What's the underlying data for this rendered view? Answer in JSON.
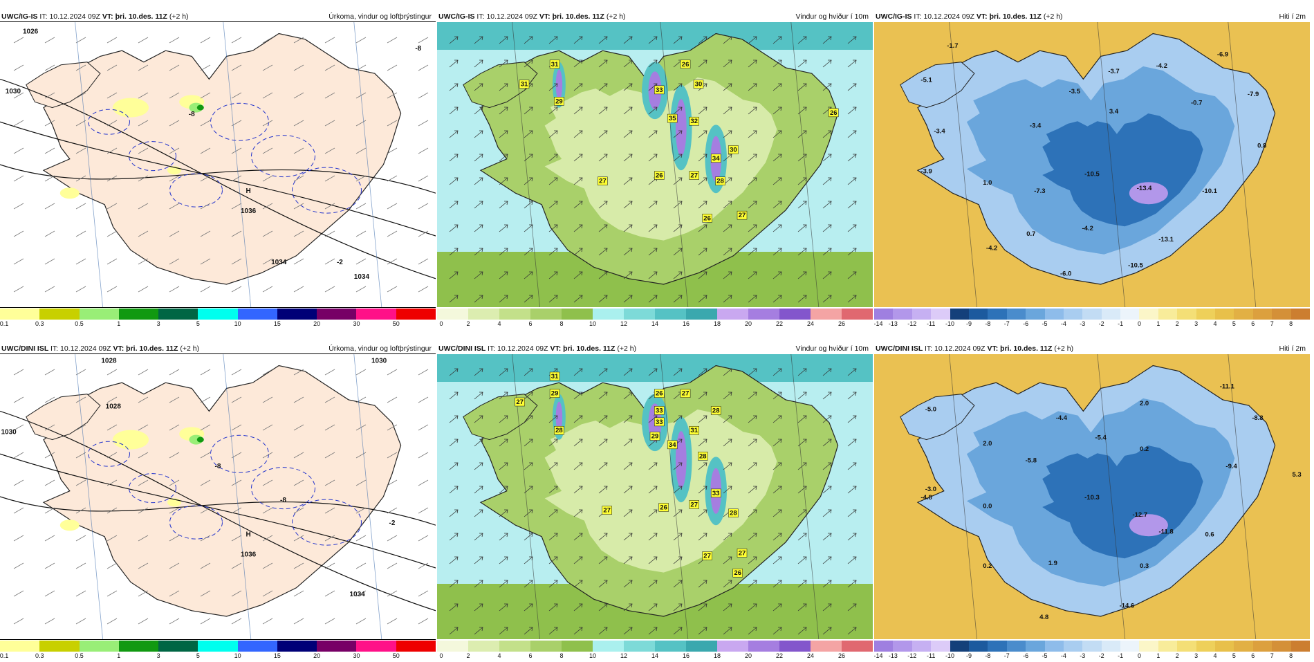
{
  "panels": [
    {
      "model": "UWC/IG-IS",
      "it_label": "IT:",
      "it_value": "10.12.2024 09Z",
      "vt_label": "VT:",
      "vt_value": "þri. 10.des. 11Z",
      "lead": "(+2 h)",
      "title": "Úrkoma, vindur og loftþrýstingur",
      "kind": "precip",
      "ticks": [
        "0.1",
        "0.3",
        "0.5",
        "1",
        "3",
        "5",
        "10",
        "15",
        "20",
        "30",
        "50"
      ],
      "colors": [
        "#ffff99",
        "#c8d000",
        "#99ee77",
        "#119911",
        "#006644",
        "#00ffee",
        "#3366ff",
        "#000077",
        "#770066",
        "#ff1188",
        "#ee0000"
      ],
      "labels": [
        {
          "t": "1026",
          "x": 7,
          "y": 4
        },
        {
          "t": "1030",
          "x": 3,
          "y": 25
        },
        {
          "t": "1034",
          "x": 64,
          "y": 85
        },
        {
          "t": "H",
          "x": 57,
          "y": 60
        },
        {
          "t": "1036",
          "x": 57,
          "y": 67
        },
        {
          "t": "-8",
          "x": 44,
          "y": 33
        },
        {
          "t": "-2",
          "x": 78,
          "y": 85
        },
        {
          "t": "-8",
          "x": 96,
          "y": 10
        },
        {
          "t": "1034",
          "x": 83,
          "y": 90
        }
      ]
    },
    {
      "model": "UWC/IG-IS",
      "it_label": "IT:",
      "it_value": "10.12.2024 09Z",
      "vt_label": "VT:",
      "vt_value": "þri. 10.des. 11Z",
      "lead": "(+2 h)",
      "title": "Vindur og hviður í 10m",
      "kind": "wind",
      "ticks": [
        "0",
        "2",
        "4",
        "6",
        "8",
        "10",
        "12",
        "14",
        "16",
        "18",
        "20",
        "22",
        "24",
        "26"
      ],
      "colors": [
        "#f4f8dc",
        "#dcedb0",
        "#c3e08a",
        "#a9d06a",
        "#8fc04c",
        "#aaf0ee",
        "#7ddad8",
        "#55c2c4",
        "#3aa8ae",
        "#c9a8f0",
        "#a57ee0",
        "#8356cc",
        "#f4a4a4",
        "#e06870"
      ],
      "labels": [
        {
          "t": "31",
          "x": 20,
          "y": 22
        },
        {
          "t": "29",
          "x": 28,
          "y": 28
        },
        {
          "t": "31",
          "x": 27,
          "y": 15
        },
        {
          "t": "26",
          "x": 57,
          "y": 15
        },
        {
          "t": "33",
          "x": 51,
          "y": 24
        },
        {
          "t": "30",
          "x": 60,
          "y": 22
        },
        {
          "t": "35",
          "x": 54,
          "y": 34
        },
        {
          "t": "32",
          "x": 59,
          "y": 35
        },
        {
          "t": "34",
          "x": 64,
          "y": 48
        },
        {
          "t": "30",
          "x": 68,
          "y": 45
        },
        {
          "t": "27",
          "x": 38,
          "y": 56
        },
        {
          "t": "26",
          "x": 51,
          "y": 54
        },
        {
          "t": "27",
          "x": 59,
          "y": 54
        },
        {
          "t": "28",
          "x": 65,
          "y": 56
        },
        {
          "t": "26",
          "x": 62,
          "y": 69
        },
        {
          "t": "27",
          "x": 70,
          "y": 68
        },
        {
          "t": "26",
          "x": 91,
          "y": 32
        }
      ]
    },
    {
      "model": "UWC/IG-IS",
      "it_label": "IT:",
      "it_value": "10.12.2024 09Z",
      "vt_label": "VT:",
      "vt_value": "þri. 10.des. 11Z",
      "lead": "(+2 h)",
      "title": "Hiti í 2m",
      "kind": "temp",
      "ticks": [
        "-14",
        "-13",
        "-12",
        "-11",
        "-10",
        "-9",
        "-8",
        "-7",
        "-6",
        "-5",
        "-4",
        "-3",
        "-2",
        "-1",
        "0",
        "1",
        "2",
        "3",
        "4",
        "5",
        "6",
        "7",
        "8"
      ],
      "colors": [
        "#9f7fe0",
        "#b297ea",
        "#c6b0f2",
        "#dccbf8",
        "#14407a",
        "#1c5a9e",
        "#2d72b8",
        "#4a8ccc",
        "#6aa6dc",
        "#8ebcea",
        "#a9cdf0",
        "#c2dcf4",
        "#d9eaf8",
        "#ecf4fb",
        "#fbf6c8",
        "#f8ec9a",
        "#f4df76",
        "#eed05a",
        "#e8c04a",
        "#e2b044",
        "#dca03e",
        "#d49038",
        "#cc7e30"
      ],
      "labels": [
        {
          "t": "-1.7",
          "x": 18,
          "y": 9
        },
        {
          "t": "-5.1",
          "x": 12,
          "y": 21
        },
        {
          "t": "-3.5",
          "x": 46,
          "y": 25
        },
        {
          "t": "-3.7",
          "x": 55,
          "y": 18
        },
        {
          "t": "-4.2",
          "x": 66,
          "y": 16
        },
        {
          "t": "-6.9",
          "x": 80,
          "y": 12
        },
        {
          "t": "-0.7",
          "x": 74,
          "y": 29
        },
        {
          "t": "-7.9",
          "x": 87,
          "y": 26
        },
        {
          "t": "3.4",
          "x": 55,
          "y": 32
        },
        {
          "t": "-3.4",
          "x": 15,
          "y": 39
        },
        {
          "t": "-3.4",
          "x": 37,
          "y": 37
        },
        {
          "t": "0.8",
          "x": 89,
          "y": 44
        },
        {
          "t": "-3.9",
          "x": 12,
          "y": 53
        },
        {
          "t": "1.0",
          "x": 26,
          "y": 57
        },
        {
          "t": "-7.3",
          "x": 38,
          "y": 60
        },
        {
          "t": "-10.5",
          "x": 50,
          "y": 54
        },
        {
          "t": "-13.4",
          "x": 62,
          "y": 59
        },
        {
          "t": "-10.1",
          "x": 77,
          "y": 60
        },
        {
          "t": "-4.2",
          "x": 49,
          "y": 73
        },
        {
          "t": "0.7",
          "x": 36,
          "y": 75
        },
        {
          "t": "-4.2",
          "x": 27,
          "y": 80
        },
        {
          "t": "-13.1",
          "x": 67,
          "y": 77
        },
        {
          "t": "-10.5",
          "x": 60,
          "y": 86
        },
        {
          "t": "-6.0",
          "x": 44,
          "y": 89
        }
      ]
    },
    {
      "model": "UWC/DINI ISL",
      "it_label": "IT:",
      "it_value": "10.12.2024 09Z",
      "vt_label": "VT:",
      "vt_value": "þri. 10.des. 11Z",
      "lead": "(+2 h)",
      "title": "Úrkoma, vindur og loftþrýstingur",
      "kind": "precip",
      "ticks": [
        "0.1",
        "0.3",
        "0.5",
        "1",
        "3",
        "5",
        "10",
        "15",
        "20",
        "30",
        "50"
      ],
      "colors": [
        "#ffff99",
        "#c8d000",
        "#99ee77",
        "#119911",
        "#006644",
        "#00ffee",
        "#3366ff",
        "#000077",
        "#770066",
        "#ff1188",
        "#ee0000"
      ],
      "labels": [
        {
          "t": "1028",
          "x": 25,
          "y": 3
        },
        {
          "t": "1030",
          "x": 87,
          "y": 3
        },
        {
          "t": "1030",
          "x": 2,
          "y": 28
        },
        {
          "t": "1028",
          "x": 26,
          "y": 19
        },
        {
          "t": "H",
          "x": 57,
          "y": 64
        },
        {
          "t": "1036",
          "x": 57,
          "y": 71
        },
        {
          "t": "-8",
          "x": 50,
          "y": 40
        },
        {
          "t": "-8",
          "x": 65,
          "y": 52
        },
        {
          "t": "-2",
          "x": 90,
          "y": 60
        },
        {
          "t": "1034",
          "x": 82,
          "y": 85
        }
      ]
    },
    {
      "model": "UWC/DINI ISL",
      "it_label": "IT:",
      "it_value": "10.12.2024 09Z",
      "vt_label": "VT:",
      "vt_value": "þri. 10.des. 11Z",
      "lead": "(+2 h)",
      "title": "Vindur og hviður í 10m",
      "kind": "wind",
      "ticks": [
        "0",
        "2",
        "4",
        "6",
        "8",
        "10",
        "12",
        "14",
        "16",
        "18",
        "20",
        "22",
        "24",
        "26"
      ],
      "colors": [
        "#f4f8dc",
        "#dcedb0",
        "#c3e08a",
        "#a9d06a",
        "#8fc04c",
        "#aaf0ee",
        "#7ddad8",
        "#55c2c4",
        "#3aa8ae",
        "#c9a8f0",
        "#a57ee0",
        "#8356cc",
        "#f4a4a4",
        "#e06870"
      ],
      "labels": [
        {
          "t": "27",
          "x": 19,
          "y": 17
        },
        {
          "t": "29",
          "x": 27,
          "y": 14
        },
        {
          "t": "31",
          "x": 27,
          "y": 8
        },
        {
          "t": "28",
          "x": 28,
          "y": 27
        },
        {
          "t": "26",
          "x": 51,
          "y": 14
        },
        {
          "t": "27",
          "x": 57,
          "y": 14
        },
        {
          "t": "33",
          "x": 51,
          "y": 20
        },
        {
          "t": "28",
          "x": 64,
          "y": 20
        },
        {
          "t": "33",
          "x": 51,
          "y": 24
        },
        {
          "t": "29",
          "x": 50,
          "y": 29
        },
        {
          "t": "31",
          "x": 59,
          "y": 27
        },
        {
          "t": "34",
          "x": 54,
          "y": 32
        },
        {
          "t": "28",
          "x": 61,
          "y": 36
        },
        {
          "t": "33",
          "x": 64,
          "y": 49
        },
        {
          "t": "27",
          "x": 59,
          "y": 53
        },
        {
          "t": "28",
          "x": 68,
          "y": 56
        },
        {
          "t": "27",
          "x": 39,
          "y": 55
        },
        {
          "t": "26",
          "x": 52,
          "y": 54
        },
        {
          "t": "27",
          "x": 62,
          "y": 71
        },
        {
          "t": "27",
          "x": 70,
          "y": 70
        },
        {
          "t": "26",
          "x": 69,
          "y": 77
        }
      ]
    },
    {
      "model": "UWC/DINI ISL",
      "it_label": "IT:",
      "it_value": "10.12.2024 09Z",
      "vt_label": "VT:",
      "vt_value": "þri. 10.des. 11Z",
      "lead": "(+2 h)",
      "title": "Hiti í 2m",
      "kind": "temp",
      "ticks": [
        "-14",
        "-13",
        "-12",
        "-11",
        "-10",
        "-9",
        "-8",
        "-7",
        "-6",
        "-5",
        "-4",
        "-3",
        "-2",
        "-1",
        "0",
        "1",
        "2",
        "3",
        "4",
        "5",
        "6",
        "7",
        "8"
      ],
      "colors": [
        "#9f7fe0",
        "#b297ea",
        "#c6b0f2",
        "#dccbf8",
        "#14407a",
        "#1c5a9e",
        "#2d72b8",
        "#4a8ccc",
        "#6aa6dc",
        "#8ebcea",
        "#a9cdf0",
        "#c2dcf4",
        "#d9eaf8",
        "#ecf4fb",
        "#fbf6c8",
        "#f8ec9a",
        "#f4df76",
        "#eed05a",
        "#e8c04a",
        "#e2b044",
        "#dca03e",
        "#d49038",
        "#cc7e30"
      ],
      "labels": [
        {
          "t": "-5.0",
          "x": 13,
          "y": 20
        },
        {
          "t": "-11.1",
          "x": 81,
          "y": 12
        },
        {
          "t": "2.0",
          "x": 62,
          "y": 18
        },
        {
          "t": "-4.4",
          "x": 43,
          "y": 23
        },
        {
          "t": "-8.8",
          "x": 88,
          "y": 23
        },
        {
          "t": "2.0",
          "x": 26,
          "y": 32
        },
        {
          "t": "-5.4",
          "x": 52,
          "y": 30
        },
        {
          "t": "0.2",
          "x": 62,
          "y": 34
        },
        {
          "t": "-5.8",
          "x": 36,
          "y": 38
        },
        {
          "t": "-9.4",
          "x": 82,
          "y": 40
        },
        {
          "t": "5.3",
          "x": 97,
          "y": 43
        },
        {
          "t": "-3.0",
          "x": 13,
          "y": 48
        },
        {
          "t": "-4.8",
          "x": 12,
          "y": 51
        },
        {
          "t": "0.0",
          "x": 26,
          "y": 54
        },
        {
          "t": "-10.3",
          "x": 50,
          "y": 51
        },
        {
          "t": "-12.7",
          "x": 61,
          "y": 57
        },
        {
          "t": "-11.8",
          "x": 67,
          "y": 63
        },
        {
          "t": "0.6",
          "x": 77,
          "y": 64
        },
        {
          "t": "0.2",
          "x": 26,
          "y": 75
        },
        {
          "t": "1.9",
          "x": 41,
          "y": 74
        },
        {
          "t": "0.3",
          "x": 62,
          "y": 75
        },
        {
          "t": "-14.6",
          "x": 58,
          "y": 89
        },
        {
          "t": "4.8",
          "x": 39,
          "y": 93
        }
      ]
    }
  ]
}
